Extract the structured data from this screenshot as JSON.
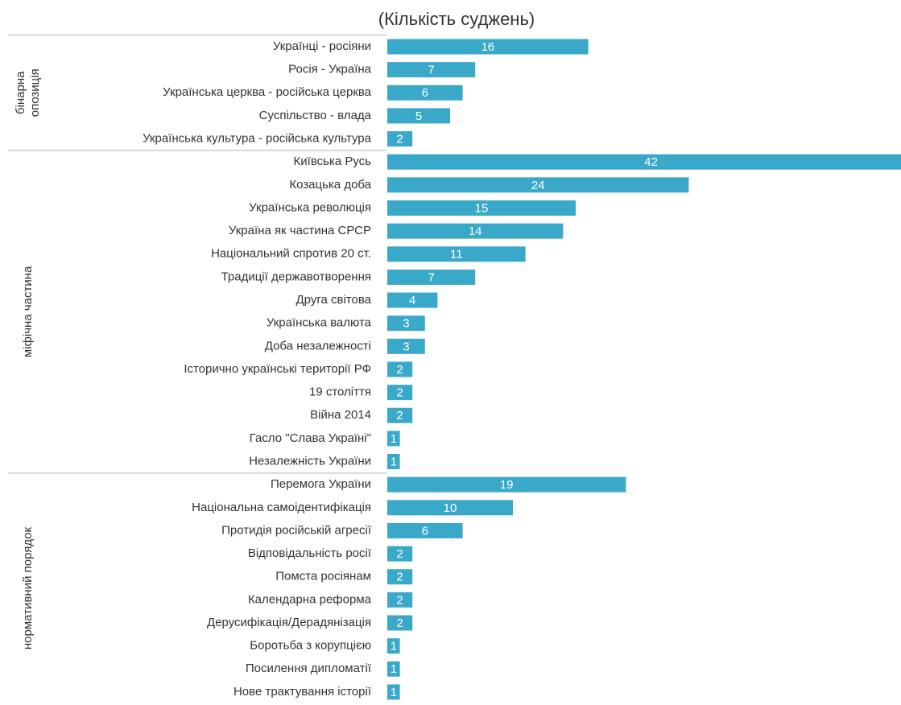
{
  "chart_data": {
    "type": "bar",
    "title": "(Кількість суджень)",
    "color": "#3aa9c9",
    "groups": [
      {
        "name": [
          "бінарна",
          "опозиція"
        ],
        "categories": [
          "Українці - росіяни",
          "Росія - Україна",
          "Українська церква - російська церква",
          "Суспільство - влада",
          "Українська культура - російська культура"
        ],
        "values": [
          16,
          7,
          6,
          5,
          2
        ]
      },
      {
        "name": [
          "міфічна частина"
        ],
        "categories": [
          "Київська Русь",
          "Козацька доба",
          "Українська революція",
          "Україна як частина СРСР",
          "Національний спротив 20 ст.",
          "Традиції державотворення",
          "Друга світова",
          "Українська валюта",
          "Доба незалежності",
          "Історично українські території РФ",
          "19 століття",
          "Війна 2014",
          "Гасло \"Слава Україні\"",
          "Незалежність України"
        ],
        "values": [
          42,
          24,
          15,
          14,
          11,
          7,
          4,
          3,
          3,
          2,
          2,
          2,
          1,
          1
        ]
      },
      {
        "name": [
          "нормативний порядок"
        ],
        "categories": [
          "Перемога України",
          "Національна самоідентифікація",
          "Протидія російській агресії",
          "Відповідальність росії",
          "Помста росіянам",
          "Календарна реформа",
          "Дерусифікація/Дерадянізація",
          "Боротьба з корупцією",
          "Посилення дипломатії",
          "Нове трактування історії"
        ],
        "values": [
          19,
          10,
          6,
          2,
          2,
          2,
          2,
          1,
          1,
          1
        ]
      }
    ]
  }
}
